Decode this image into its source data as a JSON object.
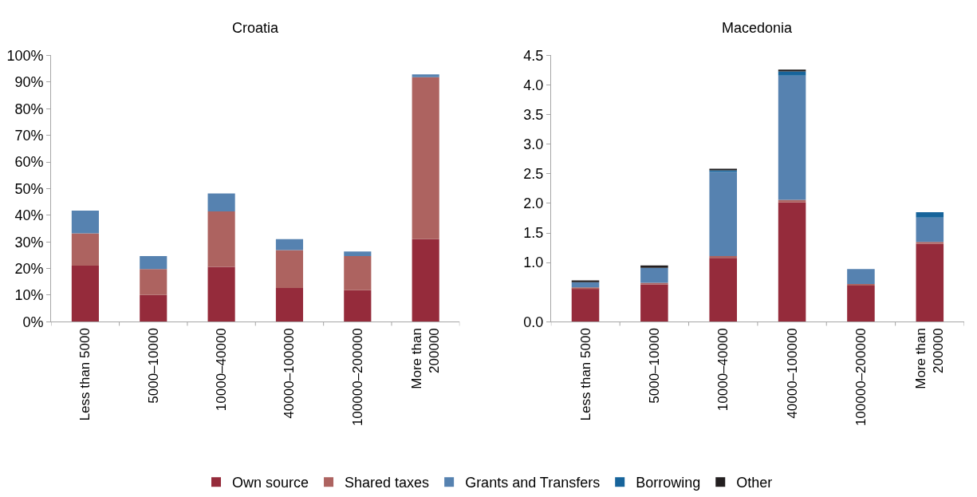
{
  "chart_data": [
    {
      "type": "bar",
      "title": "Croatia",
      "stacked": true,
      "categories": [
        "Less than 5000",
        "5000–10000",
        "10000–40000",
        "40000–100000",
        "100000–200000",
        "More than 200000"
      ],
      "series": [
        {
          "name": "Own source",
          "color": "#952b3b",
          "values": [
            21.1,
            10.1,
            20.6,
            12.7,
            11.9,
            31.0
          ]
        },
        {
          "name": "Shared taxes",
          "color": "#ad6360",
          "values": [
            12.1,
            9.7,
            20.8,
            14.2,
            12.8,
            60.8
          ]
        },
        {
          "name": "Grants and Transfers",
          "color": "#5682b0",
          "values": [
            8.5,
            4.9,
            6.8,
            4.1,
            1.7,
            1.1
          ]
        }
      ],
      "ylim": [
        0,
        100
      ],
      "yticks": [
        {
          "value": 0,
          "label": "0%"
        },
        {
          "value": 10,
          "label": "10%"
        },
        {
          "value": 20,
          "label": "20%"
        },
        {
          "value": 30,
          "label": "30%"
        },
        {
          "value": 40,
          "label": "40%"
        },
        {
          "value": 50,
          "label": "50%"
        },
        {
          "value": 60,
          "label": "60%"
        },
        {
          "value": 70,
          "label": "70%"
        },
        {
          "value": 80,
          "label": "80%"
        },
        {
          "value": 90,
          "label": "90%"
        },
        {
          "value": 100,
          "label": "100%"
        }
      ],
      "legend": "bottom"
    },
    {
      "type": "bar",
      "title": "Macedonia",
      "stacked": true,
      "categories": [
        "Less than 5000",
        "5000–10000",
        "10000–40000",
        "40000–100000",
        "100000–200000",
        "More than 200000"
      ],
      "series": [
        {
          "name": "Own source",
          "color": "#952b3b",
          "values": [
            0.56,
            0.63,
            1.08,
            2.02,
            0.61,
            1.32
          ]
        },
        {
          "name": "Shared taxes",
          "color": "#ad6360",
          "values": [
            0.02,
            0.03,
            0.03,
            0.04,
            0.03,
            0.03
          ]
        },
        {
          "name": "Grants and Transfers",
          "color": "#5682b0",
          "values": [
            0.09,
            0.25,
            1.42,
            2.1,
            0.25,
            0.41
          ]
        },
        {
          "name": "Borrowing",
          "color": "#17649b",
          "values": [
            null,
            null,
            0.03,
            0.07,
            null,
            0.09
          ]
        },
        {
          "name": "Other",
          "color": "#231f20",
          "values": [
            0.03,
            0.04,
            0.02,
            0.03,
            null,
            null
          ]
        }
      ],
      "ylim": [
        0,
        4.5
      ],
      "yticks": [
        {
          "value": 0,
          "label": "0.0"
        },
        {
          "value": 1.0,
          "label": "1.0"
        },
        {
          "value": 1.5,
          "label": "1.5"
        },
        {
          "value": 2.0,
          "label": "2.0"
        },
        {
          "value": 2.5,
          "label": "2.5"
        },
        {
          "value": 3.0,
          "label": "3.0"
        },
        {
          "value": 3.5,
          "label": "3.5"
        },
        {
          "value": 4.0,
          "label": "4.0"
        },
        {
          "value": 4.5,
          "label": "4.5"
        }
      ],
      "legend": "bottom"
    }
  ]
}
